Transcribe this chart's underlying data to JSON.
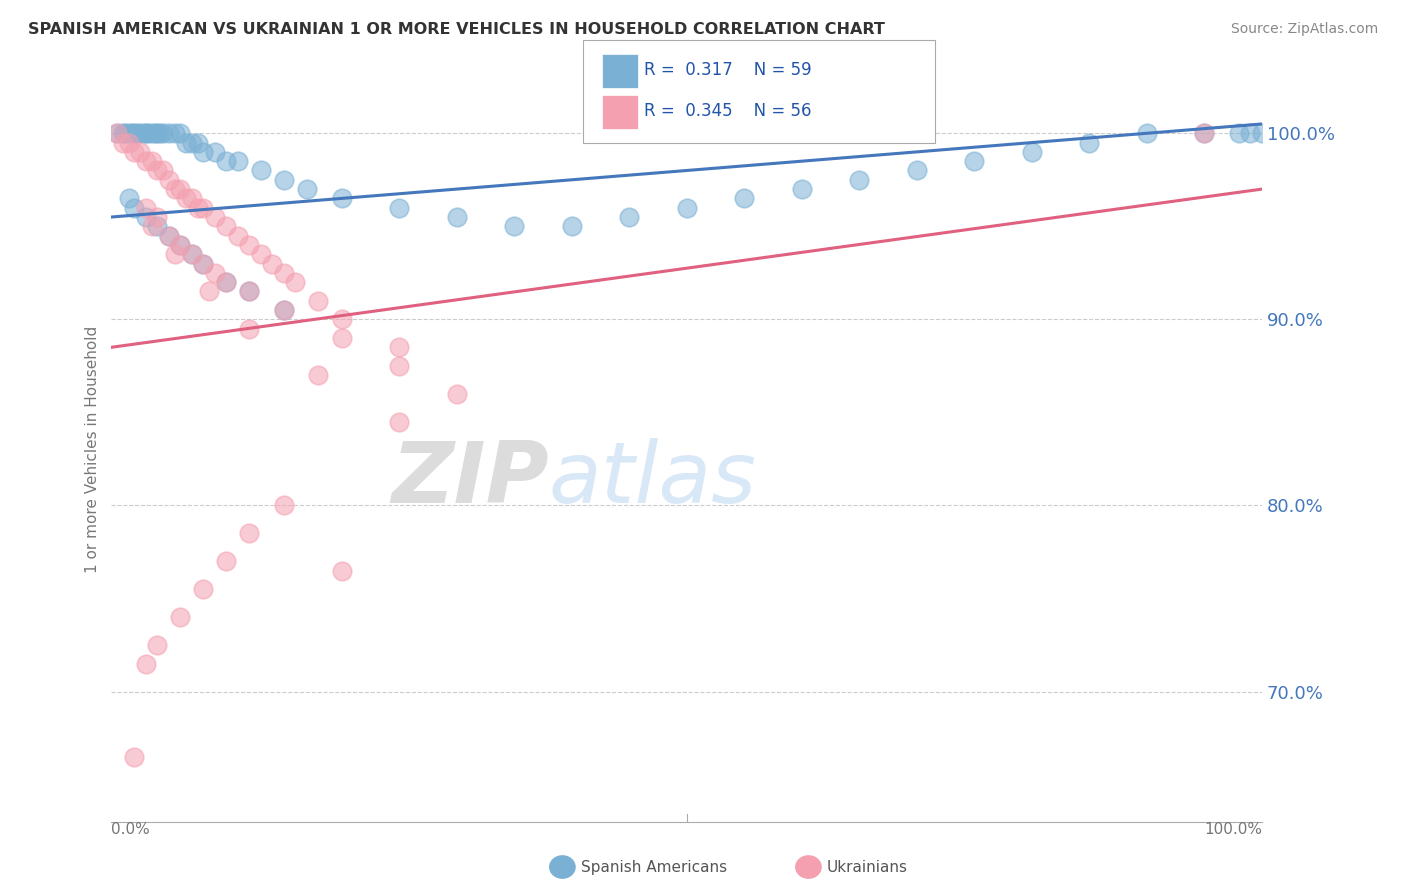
{
  "title": "SPANISH AMERICAN VS UKRAINIAN 1 OR MORE VEHICLES IN HOUSEHOLD CORRELATION CHART",
  "source": "Source: ZipAtlas.com",
  "ylabel": "1 or more Vehicles in Household",
  "xlim": [
    0.0,
    100.0
  ],
  "ylim": [
    63.0,
    103.0
  ],
  "blue_color": "#7ab0d4",
  "pink_color": "#f4a0b0",
  "blue_line_color": "#4477bb",
  "pink_line_color": "#e06080",
  "legend_R_blue": "0.317",
  "legend_N_blue": "59",
  "legend_R_pink": "0.345",
  "legend_N_pink": "56",
  "watermark_zip": "ZIP",
  "watermark_atlas": "atlas",
  "y_ticks": [
    70.0,
    80.0,
    90.0,
    100.0
  ],
  "y_tick_labels": [
    "70.0%",
    "80.0%",
    "90.0%",
    "100.0%"
  ],
  "blue_scatter_x": [
    0.5,
    1.0,
    1.2,
    1.5,
    1.8,
    2.0,
    2.2,
    2.5,
    2.8,
    3.0,
    3.2,
    3.5,
    3.8,
    4.0,
    4.2,
    4.5,
    5.0,
    5.5,
    6.0,
    6.5,
    7.0,
    7.5,
    8.0,
    9.0,
    10.0,
    11.0,
    13.0,
    15.0,
    17.0,
    20.0,
    25.0,
    30.0,
    35.0,
    40.0,
    45.0,
    50.0,
    55.0,
    60.0,
    65.0,
    70.0,
    75.0,
    80.0,
    85.0,
    90.0,
    95.0,
    98.0,
    99.0,
    100.0,
    1.5,
    2.0,
    3.0,
    4.0,
    5.0,
    6.0,
    7.0,
    8.0,
    10.0,
    12.0,
    15.0
  ],
  "blue_scatter_y": [
    100.0,
    100.0,
    100.0,
    100.0,
    100.0,
    100.0,
    100.0,
    100.0,
    100.0,
    100.0,
    100.0,
    100.0,
    100.0,
    100.0,
    100.0,
    100.0,
    100.0,
    100.0,
    100.0,
    99.5,
    99.5,
    99.5,
    99.0,
    99.0,
    98.5,
    98.5,
    98.0,
    97.5,
    97.0,
    96.5,
    96.0,
    95.5,
    95.0,
    95.0,
    95.5,
    96.0,
    96.5,
    97.0,
    97.5,
    98.0,
    98.5,
    99.0,
    99.5,
    100.0,
    100.0,
    100.0,
    100.0,
    100.0,
    96.5,
    96.0,
    95.5,
    95.0,
    94.5,
    94.0,
    93.5,
    93.0,
    92.0,
    91.5,
    90.5
  ],
  "pink_scatter_x": [
    0.5,
    1.0,
    1.5,
    2.0,
    2.5,
    3.0,
    3.5,
    4.0,
    4.5,
    5.0,
    5.5,
    6.0,
    6.5,
    7.0,
    7.5,
    8.0,
    9.0,
    10.0,
    11.0,
    12.0,
    13.0,
    14.0,
    15.0,
    16.0,
    18.0,
    20.0,
    25.0,
    95.0,
    3.0,
    4.0,
    5.0,
    6.0,
    7.0,
    8.0,
    9.0,
    10.0,
    12.0,
    15.0,
    20.0,
    25.0,
    30.0,
    3.5,
    5.5,
    8.5,
    12.0,
    18.0,
    25.0,
    20.0,
    15.0,
    12.0,
    10.0,
    8.0,
    6.0,
    4.0,
    3.0,
    2.0
  ],
  "pink_scatter_y": [
    100.0,
    99.5,
    99.5,
    99.0,
    99.0,
    98.5,
    98.5,
    98.0,
    98.0,
    97.5,
    97.0,
    97.0,
    96.5,
    96.5,
    96.0,
    96.0,
    95.5,
    95.0,
    94.5,
    94.0,
    93.5,
    93.0,
    92.5,
    92.0,
    91.0,
    90.0,
    88.5,
    100.0,
    96.0,
    95.5,
    94.5,
    94.0,
    93.5,
    93.0,
    92.5,
    92.0,
    91.5,
    90.5,
    89.0,
    87.5,
    86.0,
    95.0,
    93.5,
    91.5,
    89.5,
    87.0,
    84.5,
    76.5,
    80.0,
    78.5,
    77.0,
    75.5,
    74.0,
    72.5,
    71.5,
    66.5
  ]
}
